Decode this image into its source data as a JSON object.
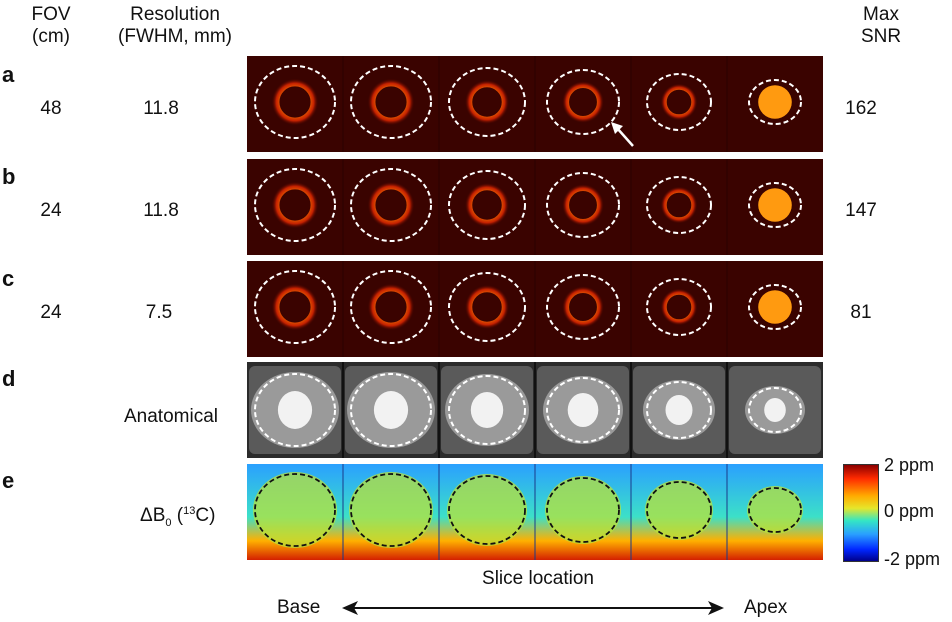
{
  "headers": {
    "fov": [
      "FOV",
      "(cm)"
    ],
    "resolution": [
      "Resolution",
      "(FWHM, mm)"
    ],
    "max_snr": [
      "Max",
      "SNR"
    ]
  },
  "rows": [
    {
      "label": "a",
      "fov": "48",
      "resolution": "11.8",
      "snr": "162"
    },
    {
      "label": "b",
      "fov": "24",
      "resolution": "11.8",
      "snr": "147"
    },
    {
      "label": "c",
      "fov": "24",
      "resolution": "7.5",
      "snr": "81"
    },
    {
      "label": "d",
      "description": "Anatomical"
    },
    {
      "label": "e",
      "description_main": "ΔB",
      "description_sub": "0",
      "description_sup": "13",
      "description_tail": "C)",
      "description_open": " ("
    }
  ],
  "colorbar": {
    "max": "2 ppm",
    "mid": "0 ppm",
    "min": "-2 ppm",
    "colors": [
      "#8b0000",
      "#ff2a00",
      "#ffaa00",
      "#e6e62a",
      "#34e6c4",
      "#2aa0ff",
      "#0026ff",
      "#00008b"
    ]
  },
  "axis": {
    "title": "Slice location",
    "left": "Base",
    "right": "Apex"
  }
}
